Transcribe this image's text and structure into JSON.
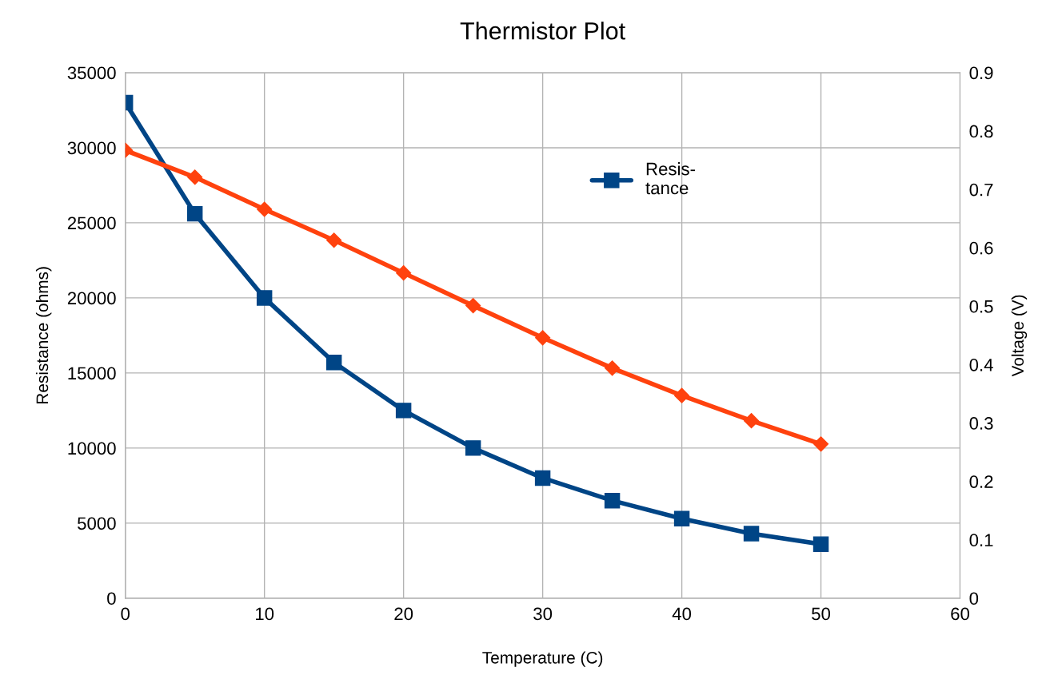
{
  "chart_data": {
    "type": "line",
    "title": "Thermistor Plot",
    "xlabel": "Temperature (C)",
    "ylabel": "Resistance (ohms)",
    "y2label": "Voltage (V)",
    "x": [
      0,
      5,
      10,
      15,
      20,
      25,
      30,
      35,
      40,
      45,
      50
    ],
    "series": [
      {
        "name": "Resis-\ntance",
        "color": "#004586",
        "marker": "square",
        "values": [
          33000,
          25600,
          20000,
          15700,
          12500,
          10000,
          8000,
          6500,
          5300,
          4300,
          3600
        ]
      },
      {
        "color": "#ff420e",
        "marker": "diamond",
        "axis": "y2",
        "values": [
          0.767,
          0.721,
          0.666,
          0.613,
          0.557,
          0.501,
          0.446,
          0.394,
          0.347,
          0.304,
          0.264
        ]
      }
    ],
    "xlim": [
      0,
      60
    ],
    "xticks": [
      0,
      10,
      20,
      30,
      40,
      50,
      60
    ],
    "ylim": [
      0,
      35000
    ],
    "yticks": [
      0,
      5000,
      10000,
      15000,
      20000,
      25000,
      30000,
      35000
    ],
    "y2lim": [
      0,
      0.9
    ],
    "y2ticks": [
      0,
      0.1,
      0.2,
      0.3,
      0.4,
      0.5,
      0.6,
      0.7,
      0.8,
      0.9
    ],
    "grid": true,
    "legend": "top right",
    "line_style": "solid"
  }
}
